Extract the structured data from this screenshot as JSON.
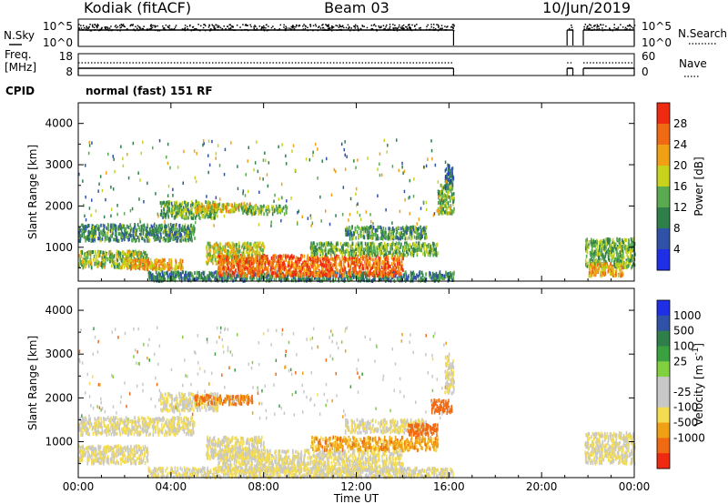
{
  "header": {
    "station": "Kodiak (fitACF)",
    "beam": "Beam 03",
    "date": "10/Jun/2019"
  },
  "top_panel": {
    "left_label": "N.Sky",
    "left_ticks": [
      "10^5",
      "10^0"
    ],
    "right_ticks": [
      "10^5",
      "10^0"
    ],
    "right_label": "N.Search"
  },
  "freq_panel": {
    "label_line1": "Freq.",
    "label_line2": "[MHz]",
    "left_ticks": [
      "18",
      "8"
    ],
    "right_ticks": [
      "60",
      "0"
    ],
    "right_label": "Nave"
  },
  "cpid": {
    "label": "CPID",
    "text": "normal (fast) 151 RF"
  },
  "chart_data": [
    {
      "type": "heatmap",
      "title": "",
      "xlabel": "Time UT",
      "ylabel": "Slant Range [km]",
      "x_ticks": [
        "00:00",
        "04:00",
        "08:00",
        "12:00",
        "16:00",
        "20:00",
        "00:00"
      ],
      "xlim_hours": [
        0,
        24
      ],
      "ylim": [
        180,
        4500
      ],
      "y_ticks": [
        1000,
        2000,
        3000,
        4000
      ],
      "colorbar": {
        "label": "Power [dB]",
        "ticks": [
          "4",
          "8",
          "12",
          "16",
          "20",
          "24",
          "28"
        ],
        "range": [
          0,
          32
        ]
      },
      "colors": [
        "#1f2fe6",
        "#2f52a6",
        "#2f7f4a",
        "#5aaa50",
        "#c8d21c",
        "#f0a014",
        "#f06a14",
        "#ee2a10"
      ],
      "data_gaps_hours": [
        [
          16.2,
          21.1
        ],
        [
          21.35,
          21.8
        ]
      ],
      "regions": [
        {
          "t": [
            0.0,
            5.0
          ],
          "r": [
            1150,
            1550
          ],
          "v": 11
        },
        {
          "t": [
            0.0,
            3.0
          ],
          "r": [
            500,
            900
          ],
          "v": 16
        },
        {
          "t": [
            2.0,
            4.5
          ],
          "r": [
            450,
            700
          ],
          "v": 22
        },
        {
          "t": [
            3.0,
            16.2
          ],
          "r": [
            180,
            400
          ],
          "v": 10
        },
        {
          "t": [
            3.5,
            6.0
          ],
          "r": [
            1700,
            2100
          ],
          "v": 14
        },
        {
          "t": [
            5.0,
            7.5
          ],
          "r": [
            1850,
            2050
          ],
          "v": 20
        },
        {
          "t": [
            7.0,
            9.0
          ],
          "r": [
            1800,
            2000
          ],
          "v": 15
        },
        {
          "t": [
            5.5,
            8.0
          ],
          "r": [
            600,
            1100
          ],
          "v": 17
        },
        {
          "t": [
            6.0,
            14.0
          ],
          "r": [
            300,
            800
          ],
          "v": 26
        },
        {
          "t": [
            10.0,
            15.5
          ],
          "r": [
            800,
            1100
          ],
          "v": 14
        },
        {
          "t": [
            11.5,
            15.0
          ],
          "r": [
            1200,
            1500
          ],
          "v": 12
        },
        {
          "t": [
            15.5,
            16.2
          ],
          "r": [
            1800,
            2500
          ],
          "v": 15
        },
        {
          "t": [
            15.8,
            16.2
          ],
          "r": [
            2400,
            3000
          ],
          "v": 8
        },
        {
          "t": [
            21.85,
            24.0
          ],
          "r": [
            500,
            1200
          ],
          "v": 14
        },
        {
          "t": [
            22.0,
            23.5
          ],
          "r": [
            300,
            600
          ],
          "v": 22
        }
      ]
    },
    {
      "type": "heatmap",
      "title": "",
      "xlabel": "Time UT",
      "ylabel": "Slant Range [km]",
      "x_ticks": [
        "00:00",
        "04:00",
        "08:00",
        "12:00",
        "16:00",
        "20:00",
        "00:00"
      ],
      "xlim_hours": [
        0,
        24
      ],
      "ylim": [
        180,
        4500
      ],
      "y_ticks": [
        1000,
        2000,
        3000,
        4000
      ],
      "colorbar": {
        "label": "Velocity [m s^-1]",
        "ticks": [
          "1000",
          "500",
          "100",
          "25",
          "-25",
          "-100",
          "-500",
          "-1000"
        ],
        "range": [
          -1000,
          1000
        ]
      },
      "colors": [
        "#ee2a10",
        "#f06a14",
        "#f0a014",
        "#f4dc50",
        "#c8c8c8",
        "#c8c8c8",
        "#80d040",
        "#3aa040",
        "#2f7f4a",
        "#2f52a6",
        "#1f2fe6"
      ],
      "data_gaps_hours": [
        [
          16.2,
          21.1
        ],
        [
          21.35,
          21.8
        ]
      ],
      "regions": [
        {
          "t": [
            0.0,
            5.0
          ],
          "r": [
            1150,
            1550
          ],
          "v": 0
        },
        {
          "t": [
            0.0,
            3.0
          ],
          "r": [
            500,
            900
          ],
          "v": 0
        },
        {
          "t": [
            3.0,
            16.2
          ],
          "r": [
            180,
            400
          ],
          "v": 0
        },
        {
          "t": [
            3.5,
            6.0
          ],
          "r": [
            1700,
            2100
          ],
          "v": 0
        },
        {
          "t": [
            5.0,
            7.5
          ],
          "r": [
            1850,
            2050
          ],
          "v": -120
        },
        {
          "t": [
            5.5,
            8.0
          ],
          "r": [
            600,
            1100
          ],
          "v": 0
        },
        {
          "t": [
            6.0,
            14.0
          ],
          "r": [
            300,
            800
          ],
          "v": 0
        },
        {
          "t": [
            10.0,
            15.5
          ],
          "r": [
            800,
            1100
          ],
          "v": -60
        },
        {
          "t": [
            11.5,
            15.0
          ],
          "r": [
            1200,
            1500
          ],
          "v": 0
        },
        {
          "t": [
            14.2,
            15.5
          ],
          "r": [
            1150,
            1400
          ],
          "v": -200
        },
        {
          "t": [
            15.2,
            16.1
          ],
          "r": [
            1650,
            1950
          ],
          "v": -400
        },
        {
          "t": [
            15.8,
            16.2
          ],
          "r": [
            2100,
            3000
          ],
          "v": 0
        },
        {
          "t": [
            21.85,
            24.0
          ],
          "r": [
            500,
            1200
          ],
          "v": 0
        }
      ]
    }
  ]
}
